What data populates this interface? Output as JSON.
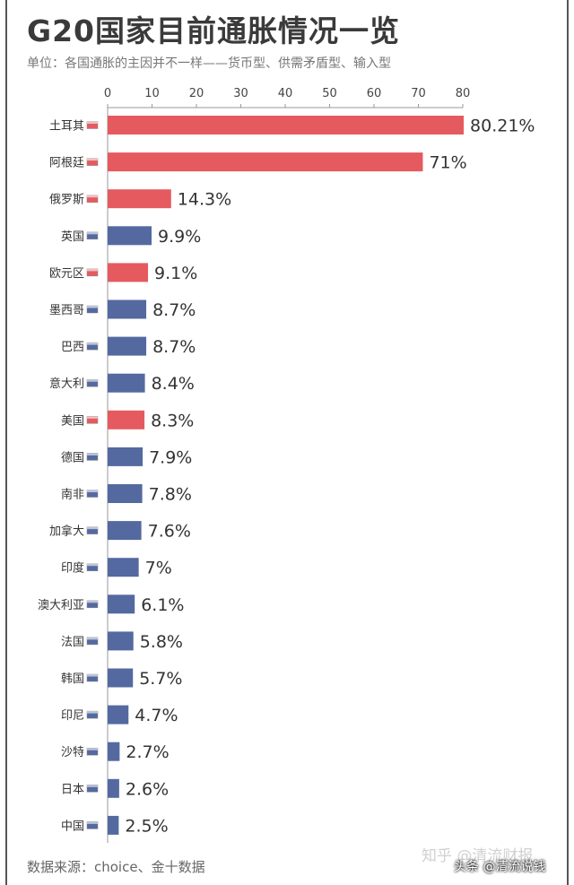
{
  "title": "G20国家目前通胀情况一览",
  "subtitle": "单位：各国通胀的主因并不一样——货币型、供需矛盾型、输入型",
  "source": "数据来源：choice、金十数据",
  "watermark_zhihu": "知乎 @清流财报",
  "watermark": "头条 @清流说钱",
  "colors": {
    "red": "#e55a5f",
    "blue": "#5469a0",
    "axis": "#999999"
  },
  "chart_data": {
    "type": "bar",
    "orientation": "horizontal",
    "axis_position": "top",
    "xlim": [
      0,
      80
    ],
    "ticks": [
      0,
      10,
      20,
      30,
      40,
      50,
      60,
      70,
      80
    ],
    "categories": [
      "土耳其",
      "阿根廷",
      "俄罗斯",
      "英国",
      "欧元区",
      "墨西哥",
      "巴西",
      "意大利",
      "美国",
      "德国",
      "南非",
      "加拿大",
      "印度",
      "澳大利亚",
      "法国",
      "韩国",
      "印尼",
      "沙特",
      "日本",
      "中国"
    ],
    "values": [
      80.21,
      71,
      14.3,
      9.9,
      9.1,
      8.7,
      8.7,
      8.4,
      8.3,
      7.9,
      7.8,
      7.6,
      7,
      6.1,
      5.8,
      5.7,
      4.7,
      2.7,
      2.6,
      2.5
    ],
    "value_labels": [
      "80.21%",
      "71%",
      "14.3%",
      "9.9%",
      "9.1%",
      "8.7%",
      "8.7%",
      "8.4%",
      "8.3%",
      "7.9%",
      "7.8%",
      "7.6%",
      "7%",
      "6.1%",
      "5.8%",
      "5.7%",
      "4.7%",
      "2.7%",
      "2.6%",
      "2.5%"
    ],
    "bar_colors": [
      "red",
      "red",
      "red",
      "blue",
      "red",
      "blue",
      "blue",
      "blue",
      "red",
      "blue",
      "blue",
      "blue",
      "blue",
      "blue",
      "blue",
      "blue",
      "blue",
      "blue",
      "blue",
      "blue"
    ]
  }
}
